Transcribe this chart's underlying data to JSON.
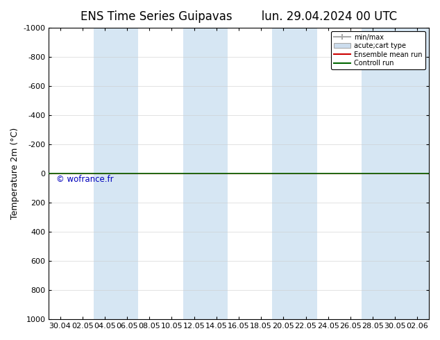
{
  "title_left": "ENS Time Series Guipavas",
  "title_right": "lun. 29.04.2024 00 UTC",
  "ylabel": "Temperature 2m (°C)",
  "ylim": [
    -1000,
    1000
  ],
  "yticks": [
    -1000,
    -800,
    -600,
    -400,
    -200,
    0,
    200,
    400,
    600,
    800,
    1000
  ],
  "xlabels": [
    "30.04",
    "02.05",
    "04.05",
    "06.05",
    "08.05",
    "10.05",
    "12.05",
    "14.05",
    "16.05",
    "18.05",
    "20.05",
    "22.05",
    "24.05",
    "26.05",
    "28.05",
    "30.05",
    "02.06"
  ],
  "watermark": "© wofrance.fr",
  "watermark_color": "#0000bb",
  "bg_color": "#ffffff",
  "plot_bg_color": "#ffffff",
  "band_color": "#cce0f0",
  "band_alpha": 0.8,
  "green_line_color": "#006600",
  "red_line_color": "#cc0000",
  "legend_items": [
    "min/max",
    "acute;cart type",
    "Ensemble mean run",
    "Controll run"
  ],
  "title_fontsize": 12,
  "axis_fontsize": 9,
  "tick_fontsize": 8,
  "band_indices": [
    2,
    3,
    6,
    7,
    10,
    11,
    14,
    15,
    16
  ]
}
